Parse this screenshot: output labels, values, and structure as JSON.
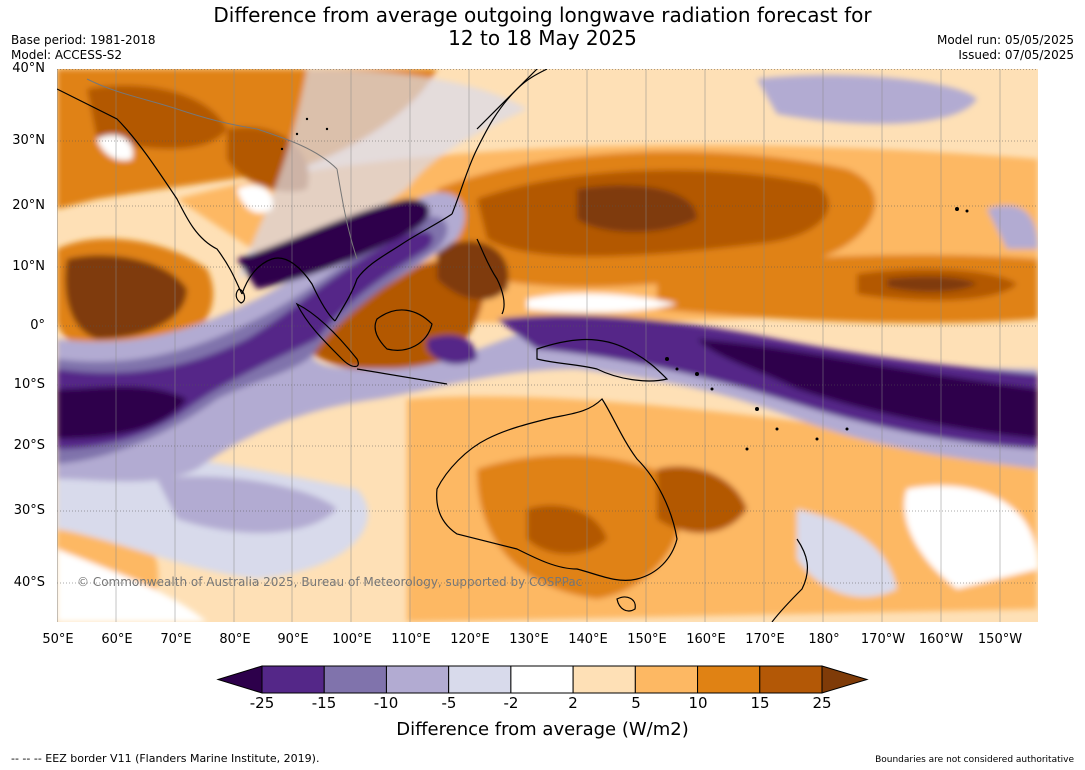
{
  "title_line1": "Difference from average outgoing longwave radiation forecast for",
  "title_line2": "12 to 18 May 2025",
  "base_period": "Base period: 1981-2018",
  "model": "Model: ACCESS-S2",
  "model_run": "Model run: 05/05/2025",
  "issued": "Issued: 07/05/2025",
  "copyright": "© Commonwealth of Australia 2025, Bureau of Meteorology, supported by COSPPac",
  "lat_labels": [
    "40°N",
    "30°N",
    "20°N",
    "10°N",
    "0°",
    "10°S",
    "20°S",
    "30°S",
    "40°S"
  ],
  "lon_labels": [
    "50°E",
    "60°E",
    "70°E",
    "80°E",
    "90°E",
    "100°E",
    "110°E",
    "120°E",
    "130°E",
    "140°E",
    "150°E",
    "160°E",
    "170°E",
    "180°",
    "170°W",
    "160°W",
    "150°W"
  ],
  "colorbar": {
    "ticks": [
      "-25",
      "-15",
      "-10",
      "-5",
      "-2",
      "2",
      "5",
      "10",
      "15",
      "25"
    ],
    "colors": [
      "#2d004b",
      "#542788",
      "#8073ac",
      "#b2abd2",
      "#d8daeb",
      "#ffffff",
      "#fee0b6",
      "#fdb863",
      "#e08214",
      "#b35806",
      "#7f3b08"
    ],
    "label": "Difference from average (W/m2)"
  },
  "footer_left": "--  --  -- EEZ border V11 (Flanders Marine Institute, 2019).",
  "footer_right": "Boundaries are not considered authoritative"
}
